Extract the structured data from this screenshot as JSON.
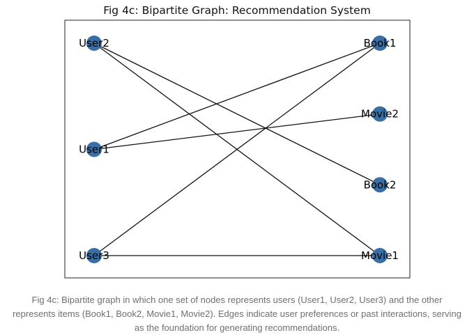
{
  "figure": {
    "title": "Fig 4c: Bipartite Graph: Recommendation System",
    "caption": "Fig 4c: Bipartite graph in which one set of nodes represents users (User1, User2, User3) and the other represents items (Book1, Book2, Movie1, Movie2). Edges indicate user preferences or past interactions, serving as the foundation for generating recommendations."
  },
  "colors": {
    "node_fill": "#3a6fa6",
    "edge": "#111111",
    "frame": "#222222"
  },
  "graph": {
    "users": [
      "User2",
      "User1",
      "User3"
    ],
    "items": [
      "Book1",
      "Movie2",
      "Book2",
      "Movie1"
    ],
    "edges": [
      [
        "User2",
        "Book2"
      ],
      [
        "User2",
        "Movie1"
      ],
      [
        "User1",
        "Book1"
      ],
      [
        "User1",
        "Movie2"
      ],
      [
        "User3",
        "Book1"
      ],
      [
        "User3",
        "Movie1"
      ]
    ]
  }
}
